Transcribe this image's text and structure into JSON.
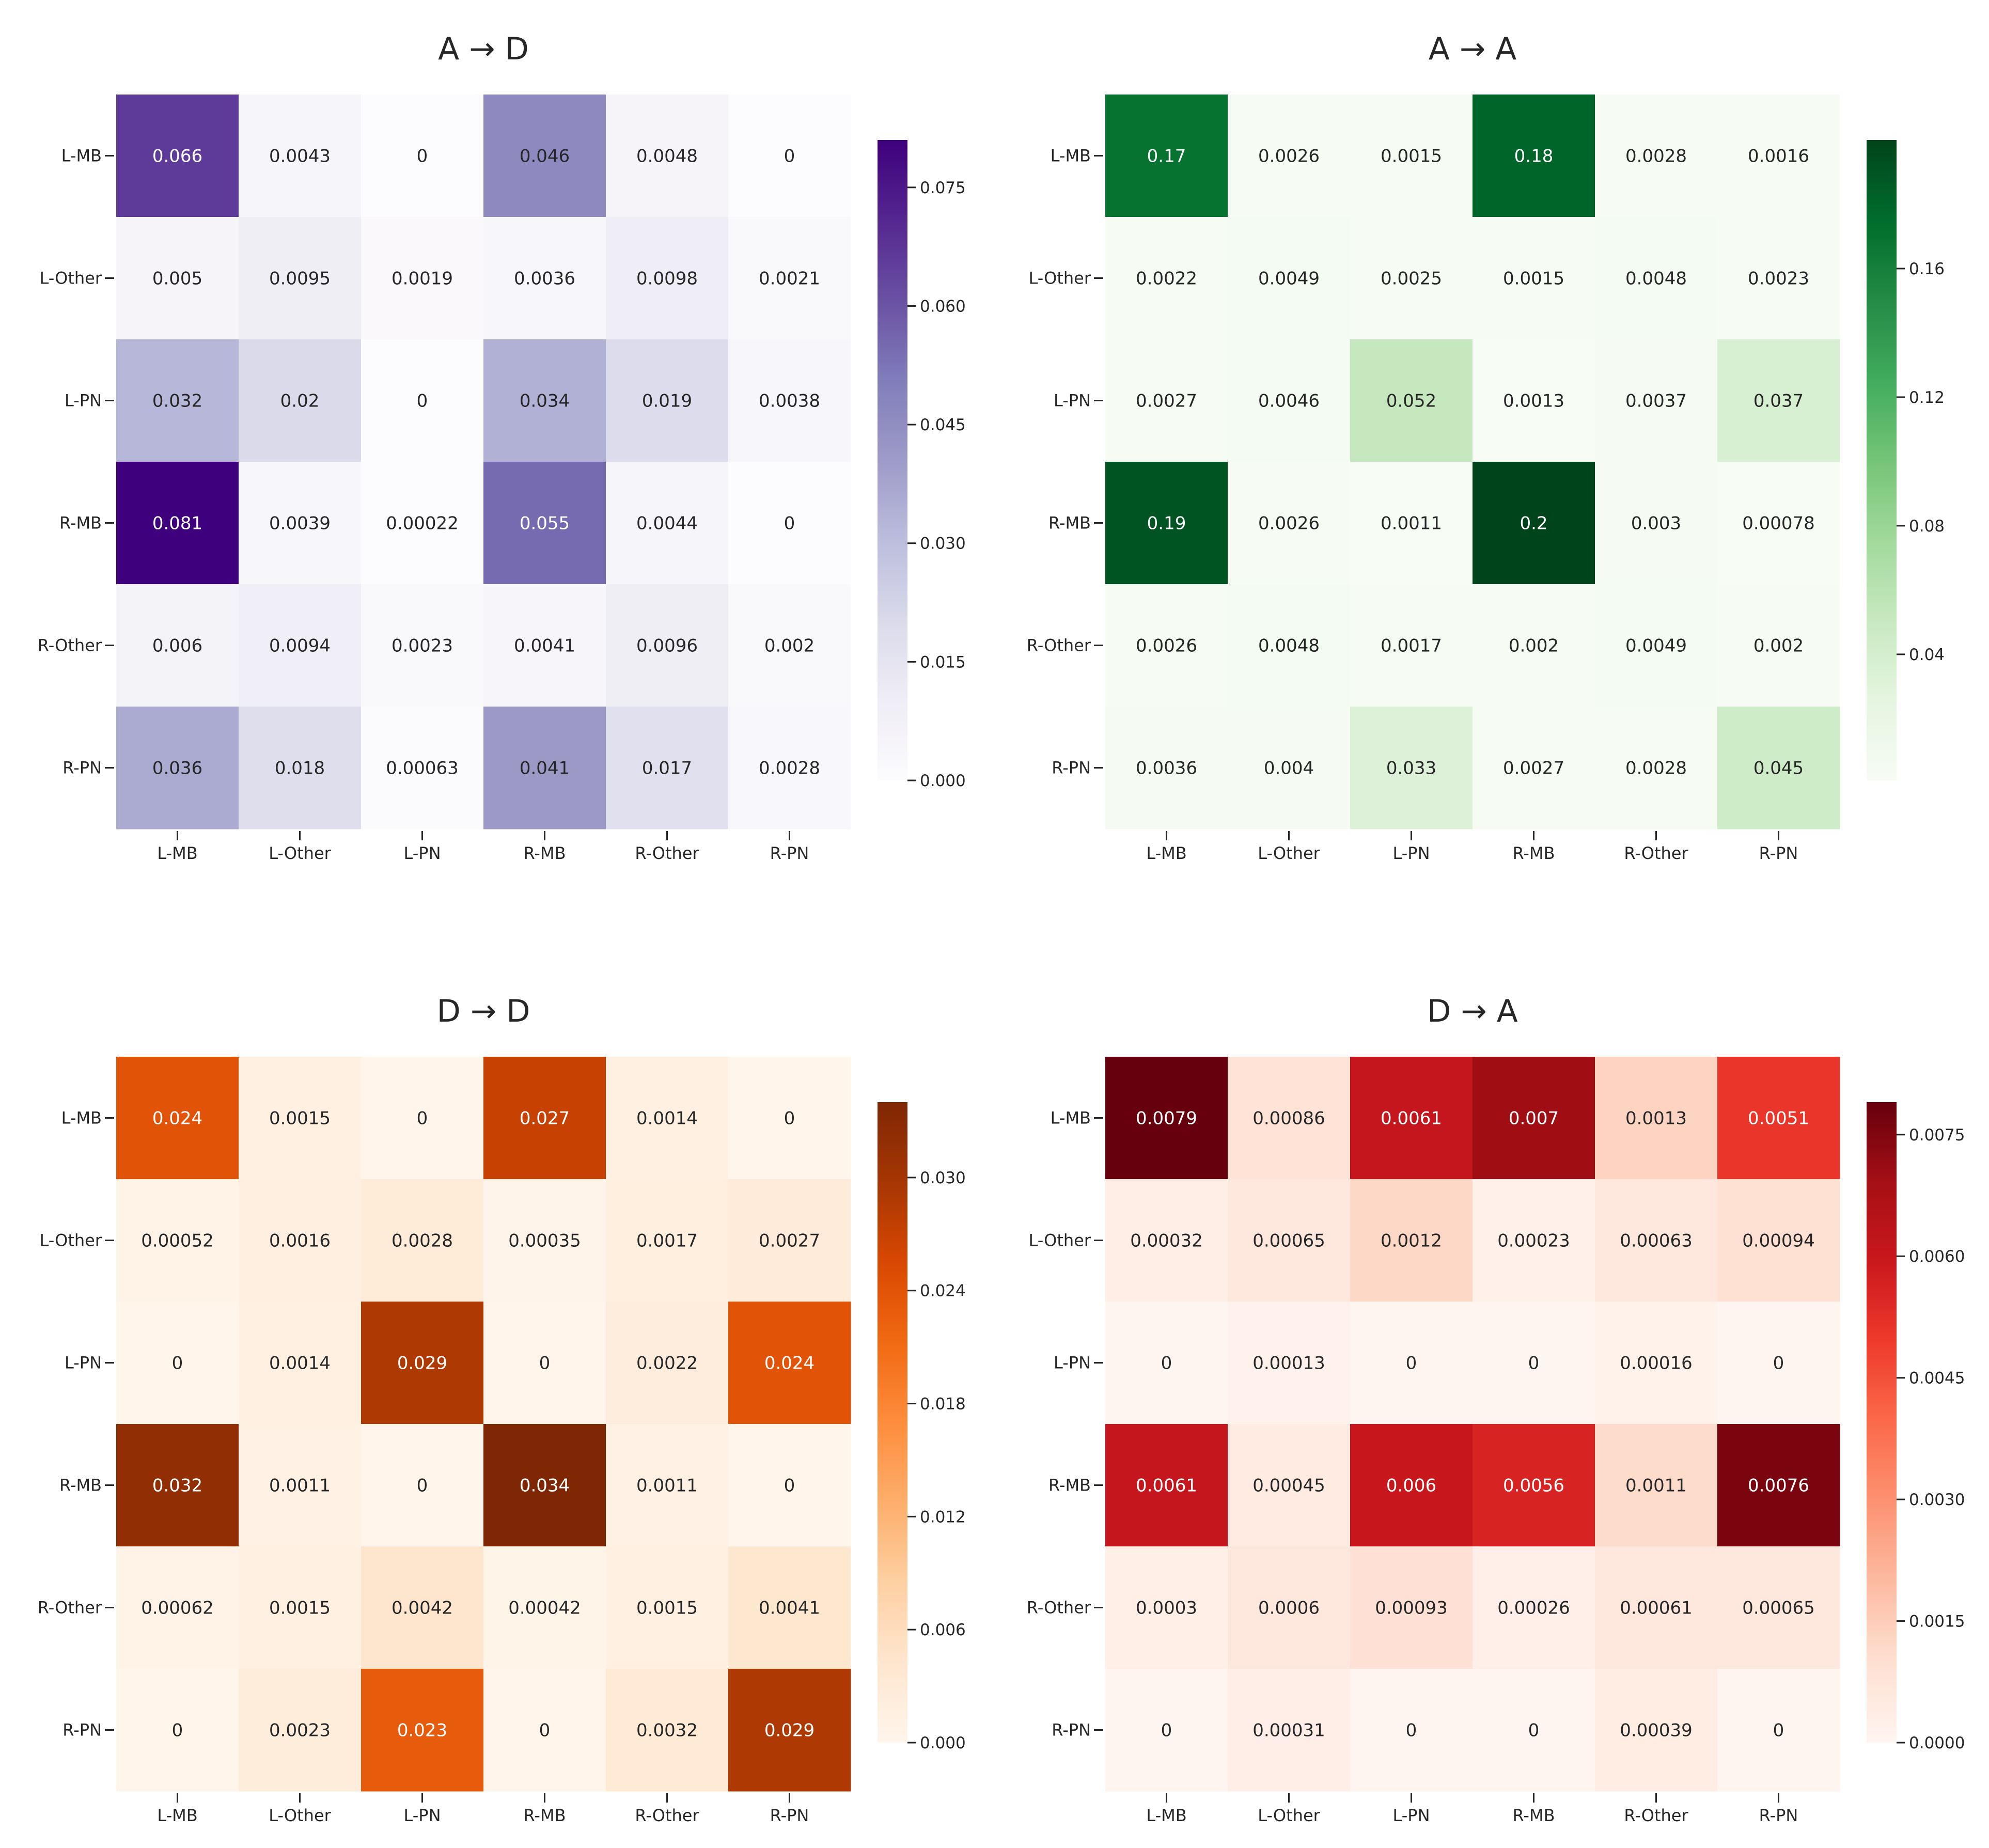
{
  "figure": {
    "background": "#ffffff"
  },
  "chart_data": [
    {
      "type": "heatmap",
      "title": "A → D",
      "colormap": "Purples",
      "colors": [
        "#fcfbfd",
        "#efedf5",
        "#dadaeb",
        "#bcbddc",
        "#9e9ac8",
        "#807dba",
        "#6a51a3",
        "#54278f",
        "#3f007d"
      ],
      "rows": [
        "L-MB",
        "L-Other",
        "L-PN",
        "R-MB",
        "R-Other",
        "R-PN"
      ],
      "cols": [
        "L-MB",
        "L-Other",
        "L-PN",
        "R-MB",
        "R-Other",
        "R-PN"
      ],
      "values": [
        [
          0.066,
          0.0043,
          0,
          0.046,
          0.0048,
          0
        ],
        [
          0.005,
          0.0095,
          0.0019,
          0.0036,
          0.0098,
          0.0021
        ],
        [
          0.032,
          0.02,
          0,
          0.034,
          0.019,
          0.0038
        ],
        [
          0.081,
          0.0039,
          0.00022,
          0.055,
          0.0044,
          0
        ],
        [
          0.006,
          0.0094,
          0.0023,
          0.0041,
          0.0096,
          0.002
        ],
        [
          0.036,
          0.018,
          0.00063,
          0.041,
          0.017,
          0.0028
        ]
      ],
      "labels": [
        [
          "0.066",
          "0.0043",
          "0",
          "0.046",
          "0.0048",
          "0"
        ],
        [
          "0.005",
          "0.0095",
          "0.0019",
          "0.0036",
          "0.0098",
          "0.0021"
        ],
        [
          "0.032",
          "0.02",
          "0",
          "0.034",
          "0.019",
          "0.0038"
        ],
        [
          "0.081",
          "0.0039",
          "0.00022",
          "0.055",
          "0.0044",
          "0"
        ],
        [
          "0.006",
          "0.0094",
          "0.0023",
          "0.0041",
          "0.0096",
          "0.002"
        ],
        [
          "0.036",
          "0.018",
          "0.00063",
          "0.041",
          "0.017",
          "0.0028"
        ]
      ],
      "vmin": 0,
      "vmax": 0.081,
      "colorbar_ticks": [
        0,
        0.015,
        0.03,
        0.045,
        0.06,
        0.075
      ],
      "colorbar_labels": [
        "0.000",
        "0.015",
        "0.030",
        "0.045",
        "0.060",
        "0.075"
      ]
    },
    {
      "type": "heatmap",
      "title": "A → A",
      "colormap": "Greens",
      "colors": [
        "#f7fcf5",
        "#e5f5e0",
        "#c7e9c0",
        "#a1d99b",
        "#74c476",
        "#41ab5d",
        "#238b45",
        "#006d2c",
        "#00441b"
      ],
      "rows": [
        "L-MB",
        "L-Other",
        "L-PN",
        "R-MB",
        "R-Other",
        "R-PN"
      ],
      "cols": [
        "L-MB",
        "L-Other",
        "L-PN",
        "R-MB",
        "R-Other",
        "R-PN"
      ],
      "values": [
        [
          0.17,
          0.0026,
          0.0015,
          0.18,
          0.0028,
          0.0016
        ],
        [
          0.0022,
          0.0049,
          0.0025,
          0.0015,
          0.0048,
          0.0023
        ],
        [
          0.0027,
          0.0046,
          0.052,
          0.0013,
          0.0037,
          0.037
        ],
        [
          0.19,
          0.0026,
          0.0011,
          0.2,
          0.003,
          0.00078
        ],
        [
          0.0026,
          0.0048,
          0.0017,
          0.002,
          0.0049,
          0.002
        ],
        [
          0.0036,
          0.004,
          0.033,
          0.0027,
          0.0028,
          0.045
        ]
      ],
      "labels": [
        [
          "0.17",
          "0.0026",
          "0.0015",
          "0.18",
          "0.0028",
          "0.0016"
        ],
        [
          "0.0022",
          "0.0049",
          "0.0025",
          "0.0015",
          "0.0048",
          "0.0023"
        ],
        [
          "0.0027",
          "0.0046",
          "0.052",
          "0.0013",
          "0.0037",
          "0.037"
        ],
        [
          "0.19",
          "0.0026",
          "0.0011",
          "0.2",
          "0.003",
          "0.00078"
        ],
        [
          "0.0026",
          "0.0048",
          "0.0017",
          "0.002",
          "0.0049",
          "0.002"
        ],
        [
          "0.0036",
          "0.004",
          "0.033",
          "0.0027",
          "0.0028",
          "0.045"
        ]
      ],
      "vmin": 0.00078,
      "vmax": 0.2,
      "colorbar_ticks": [
        0.04,
        0.08,
        0.12,
        0.16
      ],
      "colorbar_labels": [
        "0.04",
        "0.08",
        "0.12",
        "0.16"
      ]
    },
    {
      "type": "heatmap",
      "title": "D → D",
      "colormap": "Oranges",
      "colors": [
        "#fff5eb",
        "#fee6ce",
        "#fdd0a2",
        "#fdae6b",
        "#fd8d3c",
        "#f16913",
        "#d94801",
        "#a63603",
        "#7f2704"
      ],
      "rows": [
        "L-MB",
        "L-Other",
        "L-PN",
        "R-MB",
        "R-Other",
        "R-PN"
      ],
      "cols": [
        "L-MB",
        "L-Other",
        "L-PN",
        "R-MB",
        "R-Other",
        "R-PN"
      ],
      "values": [
        [
          0.024,
          0.0015,
          0,
          0.027,
          0.0014,
          0
        ],
        [
          0.00052,
          0.0016,
          0.0028,
          0.00035,
          0.0017,
          0.0027
        ],
        [
          0,
          0.0014,
          0.029,
          0,
          0.0022,
          0.024
        ],
        [
          0.032,
          0.0011,
          0,
          0.034,
          0.0011,
          0
        ],
        [
          0.00062,
          0.0015,
          0.0042,
          0.00042,
          0.0015,
          0.0041
        ],
        [
          0,
          0.0023,
          0.023,
          0,
          0.0032,
          0.029
        ]
      ],
      "labels": [
        [
          "0.024",
          "0.0015",
          "0",
          "0.027",
          "0.0014",
          "0"
        ],
        [
          "0.00052",
          "0.0016",
          "0.0028",
          "0.00035",
          "0.0017",
          "0.0027"
        ],
        [
          "0",
          "0.0014",
          "0.029",
          "0",
          "0.0022",
          "0.024"
        ],
        [
          "0.032",
          "0.0011",
          "0",
          "0.034",
          "0.0011",
          "0"
        ],
        [
          "0.00062",
          "0.0015",
          "0.0042",
          "0.00042",
          "0.0015",
          "0.0041"
        ],
        [
          "0",
          "0.0023",
          "0.023",
          "0",
          "0.0032",
          "0.029"
        ]
      ],
      "vmin": 0,
      "vmax": 0.034,
      "colorbar_ticks": [
        0,
        0.006,
        0.012,
        0.018,
        0.024,
        0.03
      ],
      "colorbar_labels": [
        "0.000",
        "0.006",
        "0.012",
        "0.018",
        "0.024",
        "0.030"
      ]
    },
    {
      "type": "heatmap",
      "title": "D → A",
      "colormap": "Reds",
      "colors": [
        "#fff5f0",
        "#fee0d2",
        "#fcbba1",
        "#fc9272",
        "#fb6a4a",
        "#ef3b2c",
        "#cb181d",
        "#a50f15",
        "#67000d"
      ],
      "rows": [
        "L-MB",
        "L-Other",
        "L-PN",
        "R-MB",
        "R-Other",
        "R-PN"
      ],
      "cols": [
        "L-MB",
        "L-Other",
        "L-PN",
        "R-MB",
        "R-Other",
        "R-PN"
      ],
      "values": [
        [
          0.0079,
          0.00086,
          0.0061,
          0.007,
          0.0013,
          0.0051
        ],
        [
          0.00032,
          0.00065,
          0.0012,
          0.00023,
          0.00063,
          0.00094
        ],
        [
          0,
          0.00013,
          0,
          0,
          0.00016,
          0
        ],
        [
          0.0061,
          0.00045,
          0.006,
          0.0056,
          0.0011,
          0.0076
        ],
        [
          0.0003,
          0.0006,
          0.00093,
          0.00026,
          0.00061,
          0.00065
        ],
        [
          0,
          0.00031,
          0,
          0,
          0.00039,
          0
        ]
      ],
      "labels": [
        [
          "0.0079",
          "0.00086",
          "0.0061",
          "0.007",
          "0.0013",
          "0.0051"
        ],
        [
          "0.00032",
          "0.00065",
          "0.0012",
          "0.00023",
          "0.00063",
          "0.00094"
        ],
        [
          "0",
          "0.00013",
          "0",
          "0",
          "0.00016",
          "0"
        ],
        [
          "0.0061",
          "0.00045",
          "0.006",
          "0.0056",
          "0.0011",
          "0.0076"
        ],
        [
          "0.0003",
          "0.0006",
          "0.00093",
          "0.00026",
          "0.00061",
          "0.00065"
        ],
        [
          "0",
          "0.00031",
          "0",
          "0",
          "0.00039",
          "0"
        ]
      ],
      "vmin": 0,
      "vmax": 0.0079,
      "colorbar_ticks": [
        0,
        0.0015,
        0.003,
        0.0045,
        0.006,
        0.0075
      ],
      "colorbar_labels": [
        "0.0000",
        "0.0015",
        "0.0030",
        "0.0045",
        "0.0060",
        "0.0075"
      ]
    }
  ]
}
